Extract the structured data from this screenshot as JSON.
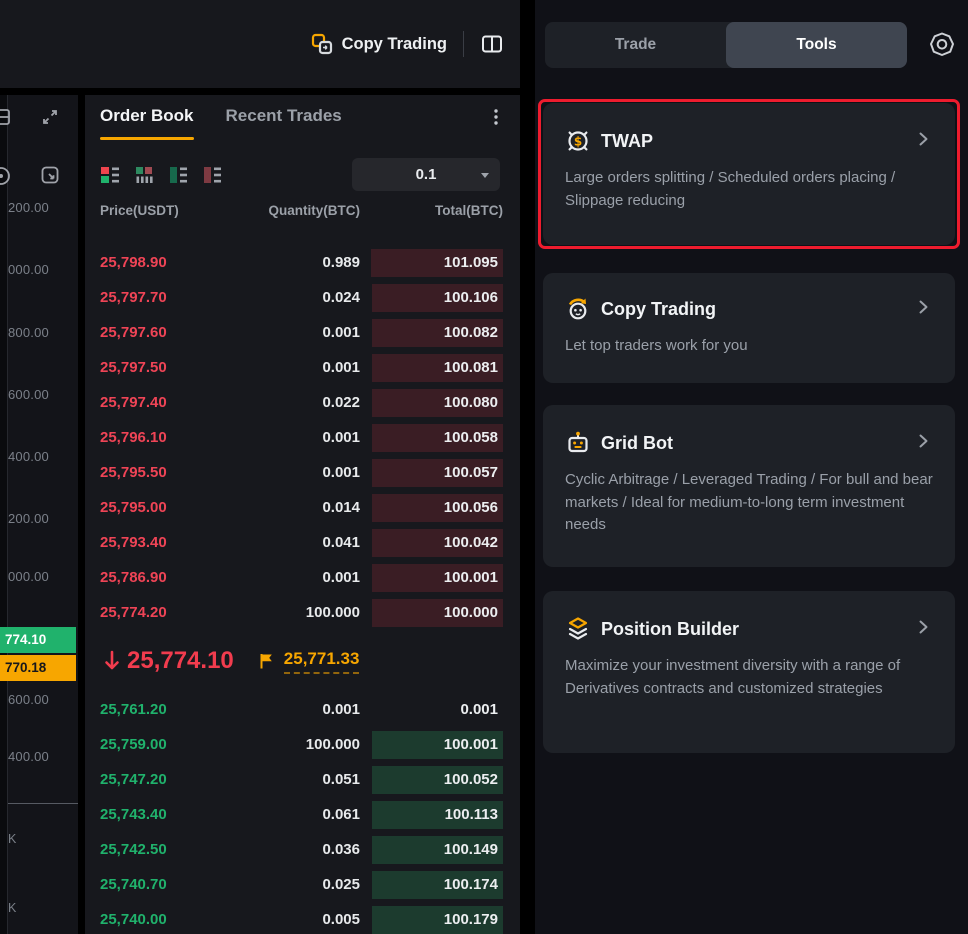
{
  "topbar": {
    "copy_trading_label": "Copy Trading"
  },
  "chart_axis": {
    "price_labels": [
      "200.00",
      "000.00",
      "800.00",
      "600.00",
      "400.00",
      "200.00",
      "000.00",
      "800.00",
      "600.00",
      "400.00"
    ],
    "price_badge_green": "774.10",
    "price_badge_orange": "770.18",
    "volume_labels": [
      "K",
      "K"
    ]
  },
  "orderbook": {
    "tabs": [
      {
        "label": "Order Book",
        "active": true
      },
      {
        "label": "Recent Trades",
        "active": false
      }
    ],
    "precision": "0.1",
    "columns": [
      "Price(USDT)",
      "Quantity(BTC)",
      "Total(BTC)"
    ],
    "asks": [
      {
        "price": "25,798.90",
        "qty": "0.989",
        "total": "101.095"
      },
      {
        "price": "25,797.70",
        "qty": "0.024",
        "total": "100.106"
      },
      {
        "price": "25,797.60",
        "qty": "0.001",
        "total": "100.082"
      },
      {
        "price": "25,797.50",
        "qty": "0.001",
        "total": "100.081"
      },
      {
        "price": "25,797.40",
        "qty": "0.022",
        "total": "100.080"
      },
      {
        "price": "25,796.10",
        "qty": "0.001",
        "total": "100.058"
      },
      {
        "price": "25,795.50",
        "qty": "0.001",
        "total": "100.057"
      },
      {
        "price": "25,795.00",
        "qty": "0.014",
        "total": "100.056"
      },
      {
        "price": "25,793.40",
        "qty": "0.041",
        "total": "100.042"
      },
      {
        "price": "25,786.90",
        "qty": "0.001",
        "total": "100.001"
      },
      {
        "price": "25,774.20",
        "qty": "100.000",
        "total": "100.000"
      }
    ],
    "mid": {
      "price": "25,774.10",
      "direction": "down",
      "mark_price": "25,771.33"
    },
    "bids": [
      {
        "price": "25,761.20",
        "qty": "0.001",
        "total": "0.001"
      },
      {
        "price": "25,759.00",
        "qty": "100.000",
        "total": "100.001"
      },
      {
        "price": "25,747.20",
        "qty": "0.051",
        "total": "100.052"
      },
      {
        "price": "25,743.40",
        "qty": "0.061",
        "total": "100.113"
      },
      {
        "price": "25,742.50",
        "qty": "0.036",
        "total": "100.149"
      },
      {
        "price": "25,740.70",
        "qty": "0.025",
        "total": "100.174"
      },
      {
        "price": "25,740.00",
        "qty": "0.005",
        "total": "100.179"
      }
    ]
  },
  "tools_panel": {
    "tabs": [
      {
        "label": "Trade",
        "active": false
      },
      {
        "label": "Tools",
        "active": true
      }
    ],
    "cards": [
      {
        "title": "TWAP",
        "icon": "twap-clock-icon",
        "description": "Large orders splitting / Scheduled orders placing / Slippage reducing",
        "highlighted": true
      },
      {
        "title": "Copy Trading",
        "icon": "copy-trading-icon",
        "description": "Let top traders work for you",
        "highlighted": false
      },
      {
        "title": "Grid Bot",
        "icon": "grid-bot-icon",
        "description": "Cyclic Arbitrage / Leveraged Trading / For bull and bear markets / Ideal for medium-to-long term investment needs",
        "highlighted": false
      },
      {
        "title": "Position Builder",
        "icon": "position-builder-icon",
        "description": "Maximize your investment diversity with a range of Derivatives contracts and customized strategies",
        "highlighted": false
      }
    ]
  },
  "colors": {
    "accent_orange": "#F7A600",
    "ask_red": "#EF4456",
    "bid_green": "#20B26C",
    "ask_bar_bg": "#3A1D24",
    "bid_bar_bg": "#1C3B2E",
    "annotation_red": "#EE1C2E",
    "panel_bg": "#17181D",
    "card_bg": "#1E2127"
  }
}
